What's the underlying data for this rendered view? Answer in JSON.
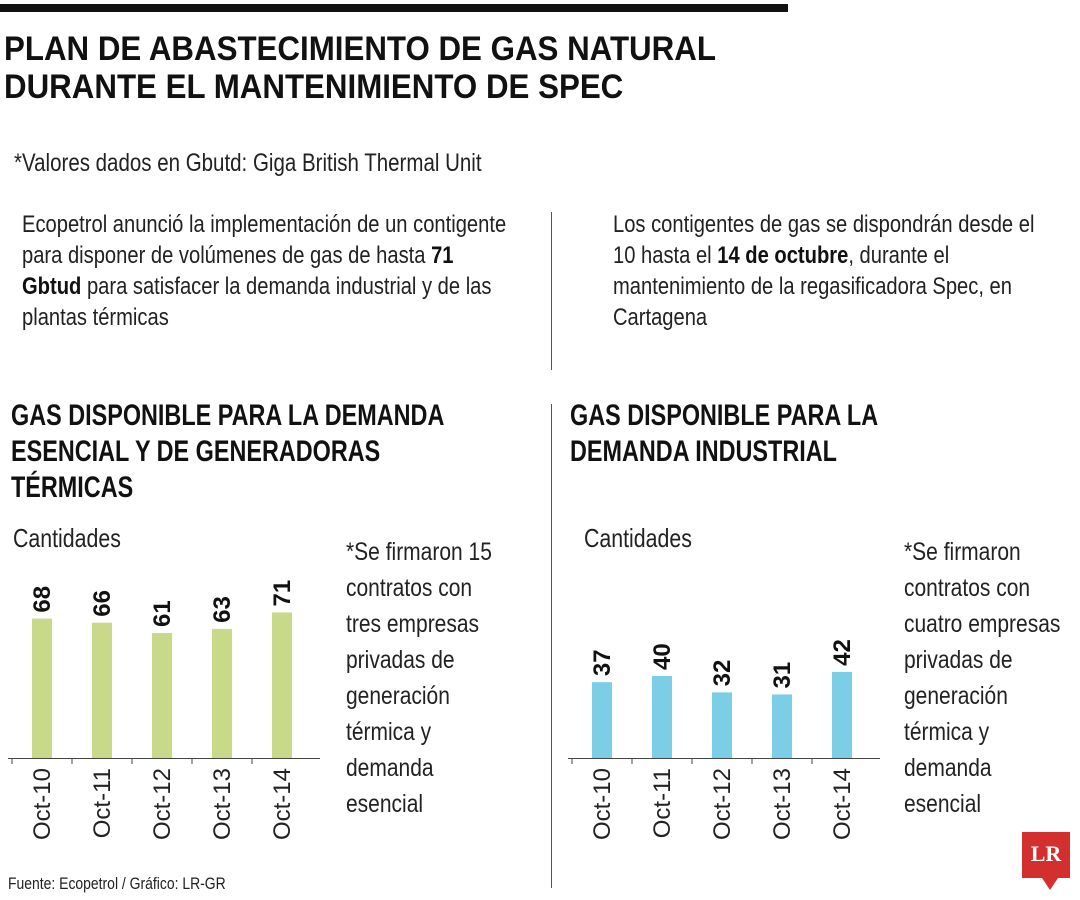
{
  "title_lines": [
    "PLAN DE ABASTECIMIENTO DE GAS NATURAL",
    "DURANTE EL MANTENIMIENTO DE SPEC"
  ],
  "note": "*Valores dados en Gbutd: Giga British Thermal Unit",
  "left_paragraph": {
    "pre": "Ecopetrol anunció la implementación de un contigente para disponer de volúmenes de gas de hasta ",
    "bold": "71 Gbtud",
    "post": " para satisfacer la demanda industrial y de las plantas térmicas"
  },
  "right_paragraph": {
    "pre": "Los contigentes de gas se dispondrán desde el 10 hasta el ",
    "bold": "14 de octubre",
    "post": ", durante el mantenimiento de la regasificadora Spec, en Cartagena"
  },
  "source": "Fuente: Ecopetrol / Gráfico: LR-GR",
  "logo_text": "LR",
  "colors": {
    "bar_green": "#c8d98a",
    "bar_blue": "#7ccde6",
    "logo_red": "#d32f2f"
  },
  "chart_data": [
    {
      "type": "bar",
      "title_lines": [
        "GAS DISPONIBLE PARA LA DEMANDA",
        "ESENCIAL Y DE GENERADORAS",
        "TÉRMICAS"
      ],
      "ylabel": "Cantidades",
      "categories": [
        "Oct-10",
        "Oct-11",
        "Oct-12",
        "Oct-13",
        "Oct-14"
      ],
      "values": [
        68,
        66,
        61,
        63,
        71
      ],
      "note_lines": [
        "*Se firmaron 15",
        "contratos con",
        "tres empresas",
        "privadas de",
        "generación",
        "térmica y",
        "demanda",
        "esencial"
      ],
      "color": "#c8d98a"
    },
    {
      "type": "bar",
      "title_lines": [
        "GAS DISPONIBLE PARA LA",
        "DEMANDA INDUSTRIAL"
      ],
      "ylabel": "Cantidades",
      "categories": [
        "Oct-10",
        "Oct-11",
        "Oct-12",
        "Oct-13",
        "Oct-14"
      ],
      "values": [
        37,
        40,
        32,
        31,
        42
      ],
      "note_lines": [
        "*Se firmaron",
        "contratos con",
        "cuatro empresas",
        "privadas de",
        "generación",
        "térmica y",
        "demanda",
        "esencial"
      ],
      "color": "#7ccde6"
    }
  ]
}
